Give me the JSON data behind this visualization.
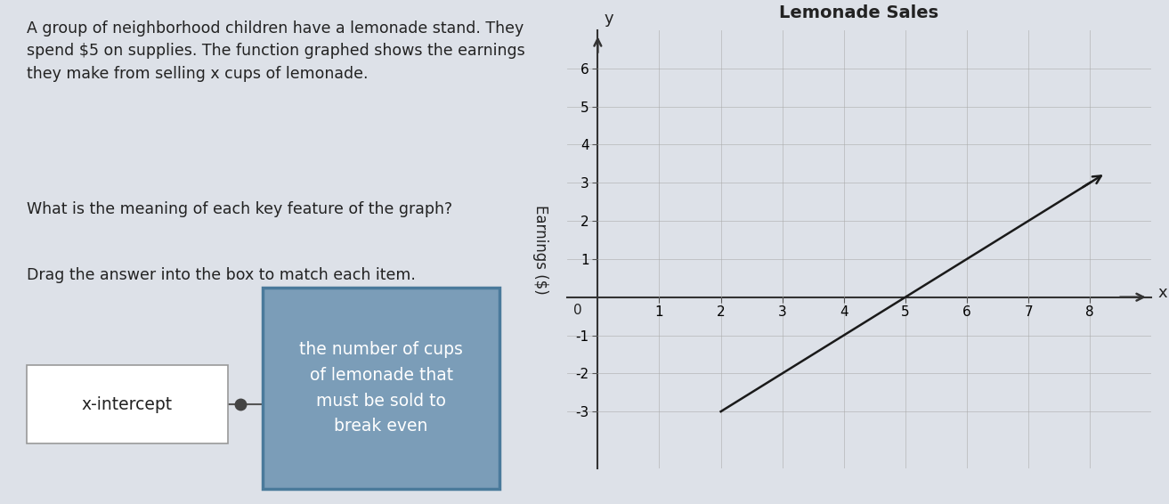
{
  "title": "Lemonade Sales",
  "ylabel": "Earnings ($)",
  "xlabel": "x",
  "xlim": [
    -0.5,
    9.0
  ],
  "ylim": [
    -4.5,
    7.0
  ],
  "xticks": [
    1,
    2,
    3,
    4,
    5,
    6,
    7,
    8
  ],
  "yticks": [
    -3,
    -2,
    -1,
    1,
    2,
    3,
    4,
    5,
    6
  ],
  "line_slope": 1.0,
  "line_intercept": -5.0,
  "x_start": 2.0,
  "x_end": 8.0,
  "background_color": "#dde1e8",
  "grid_color": "#aaaaaa",
  "line_color": "#1a1a1a",
  "text_color": "#222222",
  "para1": "A group of neighborhood children have a lemonade stand. They\nspend $5 on supplies. The function graphed shows the earnings\nthey make from selling x cups of lemonade.",
  "para2": "What is the meaning of each key feature of the graph?",
  "para3": "Drag the answer into the box to match each item.",
  "left_box_text": "x-intercept",
  "right_box_text": "the number of cups\nof lemonade that\nmust be sold to\nbreak even",
  "left_box_color": "#ffffff",
  "right_box_color": "#7b9db8",
  "right_box_border": "#4a7a9b",
  "connector_color": "#555555",
  "font_size_text": 12.5,
  "font_size_box": 13.5,
  "font_size_title": 14,
  "font_size_tick": 11,
  "font_size_axis_label": 12
}
